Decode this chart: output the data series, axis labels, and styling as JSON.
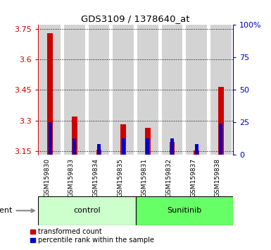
{
  "title": "GDS3109 / 1378640_at",
  "samples": [
    "GSM159830",
    "GSM159833",
    "GSM159834",
    "GSM159835",
    "GSM159831",
    "GSM159832",
    "GSM159837",
    "GSM159838"
  ],
  "red_values": [
    3.73,
    3.32,
    3.155,
    3.28,
    3.265,
    3.195,
    3.153,
    3.465
  ],
  "blue_values": [
    3.29,
    3.21,
    3.185,
    3.21,
    3.21,
    3.21,
    3.185,
    3.285
  ],
  "ylim_left": [
    3.13,
    3.77
  ],
  "yticks_left": [
    3.15,
    3.3,
    3.45,
    3.6,
    3.75
  ],
  "ytick_labels_left": [
    "3.15",
    "3.3",
    "3.45",
    "3.6",
    "3.75"
  ],
  "ylim_right": [
    0,
    100
  ],
  "yticks_right": [
    0,
    25,
    50,
    75,
    100
  ],
  "ytick_labels_right": [
    "0",
    "25",
    "50",
    "75",
    "100%"
  ],
  "group_labels": [
    "control",
    "Sunitinib"
  ],
  "group_ranges": [
    [
      0,
      4
    ],
    [
      4,
      8
    ]
  ],
  "group_colors": [
    "#ccffcc",
    "#66ff66"
  ],
  "bar_bg_color": "#d3d3d3",
  "red_color": "#cc0000",
  "blue_color": "#0000cc",
  "left_tick_color": "#cc0000",
  "right_tick_color": "#0000cc",
  "baseline": 3.13,
  "legend_red": "transformed count",
  "legend_blue": "percentile rank within the sample",
  "agent_label": "agent"
}
